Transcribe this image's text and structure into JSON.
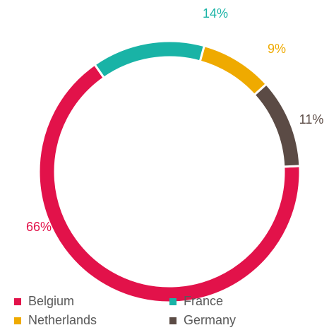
{
  "chart_data": {
    "type": "donut",
    "categories": [
      "Belgium",
      "France",
      "Netherlands",
      "Germany"
    ],
    "values": [
      66,
      14,
      9,
      11
    ],
    "value_labels": [
      "66%",
      "14%",
      "9%",
      "11%"
    ],
    "colors": [
      "#e2124a",
      "#19b3a6",
      "#efaa00",
      "#5b4b45"
    ],
    "legend": "bottom"
  }
}
